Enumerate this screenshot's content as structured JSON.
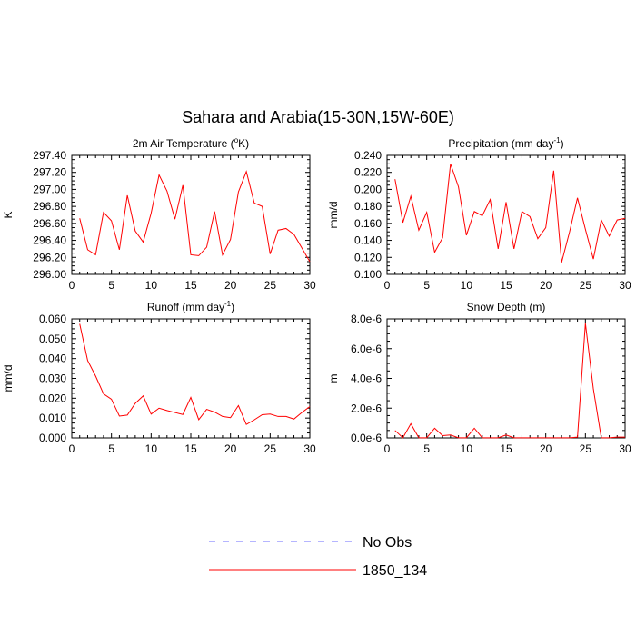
{
  "title": "Sahara and Arabia(15-30N,15W-60E)",
  "legend": {
    "placement": "bottom-center",
    "entries": [
      {
        "label": "No Obs",
        "color": "#6b6bff",
        "dash": true
      },
      {
        "label": "1850_134",
        "color": "#ff0000",
        "dash": false
      }
    ]
  },
  "chart_data": [
    {
      "type": "line",
      "title": "2m Air Temperature (°K)",
      "title_parts": {
        "before": "2m Air Temperature (",
        "sup": "o",
        "after": "K)"
      },
      "ylabel": "K",
      "xlim": [
        0,
        30
      ],
      "ylim": [
        296.0,
        297.4
      ],
      "x_ticks": [
        0,
        5,
        10,
        15,
        20,
        25,
        30
      ],
      "y_ticks": [
        "296.00",
        "296.20",
        "296.40",
        "296.60",
        "296.80",
        "297.00",
        "297.20",
        "297.40"
      ],
      "series": [
        {
          "name": "1850_134",
          "color": "#ff0000",
          "x": [
            1,
            2,
            3,
            4,
            5,
            6,
            7,
            8,
            9,
            10,
            11,
            12,
            13,
            14,
            15,
            16,
            17,
            18,
            19,
            20,
            21,
            22,
            23,
            24,
            25,
            26,
            27,
            28,
            29,
            30
          ],
          "values": [
            296.66,
            296.29,
            296.23,
            296.73,
            296.63,
            296.29,
            296.93,
            296.51,
            296.38,
            296.72,
            297.17,
            296.98,
            296.65,
            297.05,
            296.23,
            296.22,
            296.32,
            296.74,
            296.23,
            296.41,
            296.97,
            297.21,
            296.84,
            296.8,
            296.24,
            296.52,
            296.54,
            296.47,
            296.31,
            296.15
          ]
        }
      ]
    },
    {
      "type": "line",
      "title": "Precipitation (mm day-1)",
      "title_parts": {
        "before": "Precipitation (mm day",
        "sup": "-1",
        "after": ")"
      },
      "ylabel": "mm/d",
      "xlim": [
        0,
        30
      ],
      "ylim": [
        0.1,
        0.24
      ],
      "x_ticks": [
        0,
        5,
        10,
        15,
        20,
        25,
        30
      ],
      "y_ticks": [
        "0.100",
        "0.120",
        "0.140",
        "0.160",
        "0.180",
        "0.200",
        "0.220",
        "0.240"
      ],
      "series": [
        {
          "name": "1850_134",
          "color": "#ff0000",
          "x": [
            1,
            2,
            3,
            4,
            5,
            6,
            7,
            8,
            9,
            10,
            11,
            12,
            13,
            14,
            15,
            16,
            17,
            18,
            19,
            20,
            21,
            22,
            23,
            24,
            25,
            26,
            27,
            28,
            29,
            30
          ],
          "values": [
            0.212,
            0.161,
            0.192,
            0.152,
            0.173,
            0.126,
            0.143,
            0.23,
            0.203,
            0.146,
            0.174,
            0.169,
            0.188,
            0.13,
            0.185,
            0.13,
            0.174,
            0.168,
            0.142,
            0.155,
            0.222,
            0.114,
            0.15,
            0.19,
            0.153,
            0.118,
            0.164,
            0.145,
            0.164,
            0.166
          ]
        }
      ]
    },
    {
      "type": "line",
      "title": "Runoff (mm day-1)",
      "title_parts": {
        "before": "Runoff (mm day",
        "sup": "-1",
        "after": ")"
      },
      "ylabel": "mm/d",
      "xlim": [
        0,
        30
      ],
      "ylim": [
        0.0,
        0.06
      ],
      "x_ticks": [
        0,
        5,
        10,
        15,
        20,
        25,
        30
      ],
      "y_ticks": [
        "0.000",
        "0.010",
        "0.020",
        "0.030",
        "0.040",
        "0.050",
        "0.060"
      ],
      "series": [
        {
          "name": "1850_134",
          "color": "#ff0000",
          "x": [
            1,
            2,
            3,
            4,
            5,
            6,
            7,
            8,
            9,
            10,
            11,
            12,
            13,
            14,
            15,
            16,
            17,
            18,
            19,
            20,
            21,
            22,
            23,
            24,
            25,
            26,
            27,
            28,
            29,
            30
          ],
          "values": [
            0.0575,
            0.039,
            0.0312,
            0.0222,
            0.0195,
            0.011,
            0.0115,
            0.0174,
            0.0212,
            0.012,
            0.015,
            0.0138,
            0.0128,
            0.0118,
            0.0204,
            0.0092,
            0.0144,
            0.013,
            0.0108,
            0.0102,
            0.0163,
            0.0068,
            0.0091,
            0.0117,
            0.012,
            0.0108,
            0.0108,
            0.0095,
            0.0128,
            0.0158
          ]
        }
      ]
    },
    {
      "type": "line",
      "title": "Snow Depth (m)",
      "ylabel": "m",
      "xlim": [
        0,
        30
      ],
      "ylim": [
        0,
        8e-06
      ],
      "x_ticks": [
        0,
        5,
        10,
        15,
        20,
        25,
        30
      ],
      "y_ticks": [
        "0.0e-6",
        "2.0e-6",
        "4.0e-6",
        "6.0e-6",
        "8.0e-6"
      ],
      "series": [
        {
          "name": "1850_134",
          "color": "#ff0000",
          "x": [
            1,
            2,
            3,
            4,
            5,
            6,
            7,
            8,
            9,
            10,
            11,
            12,
            13,
            14,
            15,
            16,
            17,
            18,
            19,
            20,
            21,
            22,
            23,
            24,
            25,
            26,
            27,
            28,
            29,
            30
          ],
          "values": [
            5e-07,
            1e-08,
            9.5e-07,
            1e-08,
            1e-08,
            6.5e-07,
            1.5e-07,
            2e-07,
            1e-08,
            1e-08,
            6.5e-07,
            1e-08,
            1e-08,
            1e-08,
            2e-07,
            1e-08,
            1e-08,
            1e-08,
            1e-08,
            1e-08,
            1e-08,
            1e-08,
            1e-08,
            5e-08,
            7.7e-06,
            3.3e-06,
            1e-08,
            1e-08,
            5e-08,
            5e-08
          ]
        }
      ]
    }
  ]
}
